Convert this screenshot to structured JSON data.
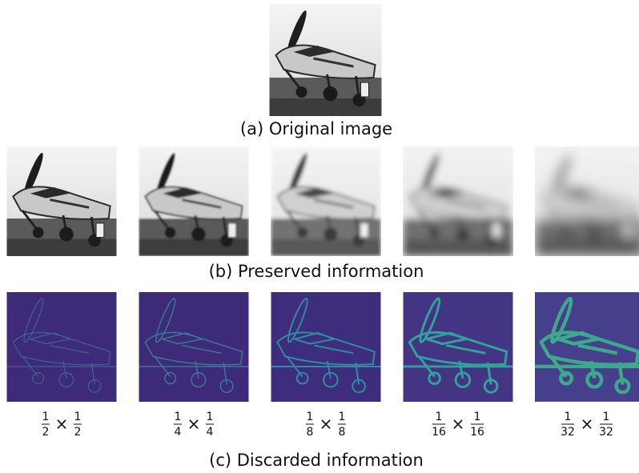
{
  "captions": {
    "original": "(a) Original image",
    "preserved": "(b) Preserved information",
    "discarded": "(c) Discarded information"
  },
  "scale_labels": [
    {
      "numerator": "1",
      "denominator": "2"
    },
    {
      "numerator": "1",
      "denominator": "4"
    },
    {
      "numerator": "1",
      "denominator": "8"
    },
    {
      "numerator": "1",
      "denominator": "16"
    },
    {
      "numerator": "1",
      "denominator": "32"
    }
  ],
  "times_symbol": "×"
}
